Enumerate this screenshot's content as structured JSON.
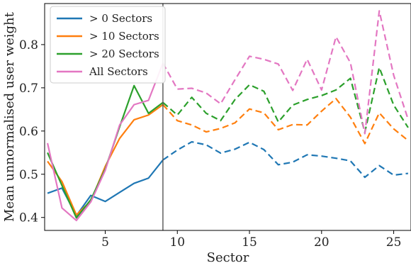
{
  "chart_data": {
    "type": "line",
    "title": "",
    "xlabel": "Sector",
    "ylabel": "Mean unnormalised user weight",
    "xlim": [
      0.8,
      26.2
    ],
    "ylim": [
      0.37,
      0.895
    ],
    "xticks": [
      5,
      10,
      15,
      20,
      25
    ],
    "yticks": [
      0.4,
      0.5,
      0.6,
      0.7,
      0.8
    ],
    "grid": false,
    "legend_position": "top-left",
    "vertical_line_x": 9,
    "solid_segment_x": [
      1,
      9
    ],
    "dashed_segment_x": [
      9,
      26
    ],
    "x": [
      1,
      2,
      3,
      4,
      5,
      6,
      7,
      8,
      9,
      10,
      11,
      12,
      13,
      14,
      15,
      16,
      17,
      18,
      19,
      20,
      21,
      22,
      23,
      24,
      25,
      26
    ],
    "series": [
      {
        "name": "> 0 Sectors",
        "color": "#1f77b4",
        "values": [
          0.456,
          0.468,
          0.404,
          0.451,
          0.437,
          0.458,
          0.479,
          0.491,
          0.533,
          0.556,
          0.575,
          0.568,
          0.549,
          0.558,
          0.574,
          0.557,
          0.522,
          0.528,
          0.545,
          0.542,
          0.537,
          0.531,
          0.493,
          0.52,
          0.498,
          0.502
        ]
      },
      {
        "name": "> 10 Sectors",
        "color": "#ff7f0e",
        "values": [
          0.53,
          0.483,
          0.406,
          0.438,
          0.518,
          0.583,
          0.626,
          0.637,
          0.661,
          0.624,
          0.614,
          0.598,
          0.606,
          0.619,
          0.651,
          0.642,
          0.603,
          0.615,
          0.614,
          0.646,
          0.675,
          0.632,
          0.571,
          0.642,
          0.605,
          0.578
        ]
      },
      {
        "name": "> 20 Sectors",
        "color": "#2ca02c",
        "values": [
          0.55,
          0.474,
          0.399,
          0.441,
          0.512,
          0.61,
          0.705,
          0.641,
          0.666,
          0.637,
          0.678,
          0.641,
          0.624,
          0.673,
          0.707,
          0.692,
          0.621,
          0.66,
          0.673,
          0.682,
          0.695,
          0.722,
          0.597,
          0.747,
          0.66,
          0.608
        ]
      },
      {
        "name": "All Sectors",
        "color": "#e377c2",
        "values": [
          0.572,
          0.422,
          0.393,
          0.436,
          0.509,
          0.614,
          0.661,
          0.671,
          0.757,
          0.697,
          0.699,
          0.688,
          0.663,
          0.719,
          0.773,
          0.766,
          0.755,
          0.694,
          0.766,
          0.695,
          0.818,
          0.758,
          0.594,
          0.878,
          0.729,
          0.627
        ]
      }
    ]
  }
}
